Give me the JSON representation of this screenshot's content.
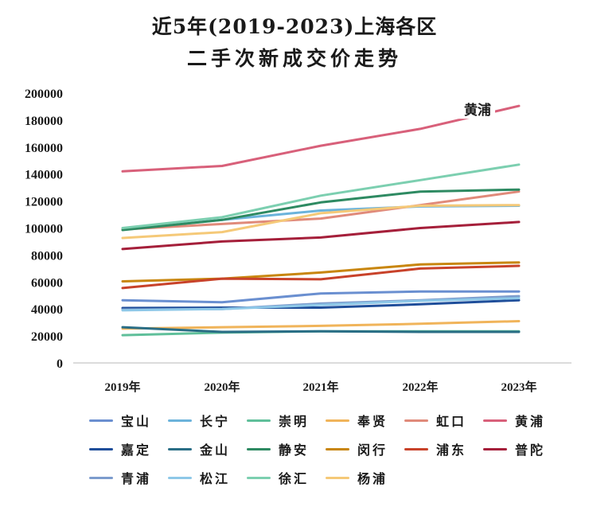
{
  "chart_data": {
    "type": "line",
    "title": "近5年(2019-2023)上海各区",
    "subtitle": "二手次新成交价走势",
    "xlabel": "",
    "ylabel": "",
    "categories": [
      "2019年",
      "2020年",
      "2021年",
      "2022年",
      "2023年"
    ],
    "ylim": [
      0,
      200000
    ],
    "yticks": [
      0,
      20000,
      40000,
      60000,
      80000,
      100000,
      120000,
      140000,
      160000,
      180000,
      200000
    ],
    "grid": false,
    "legend_position": "bottom",
    "annotations": [
      {
        "text": "黄浦",
        "series": "黄浦",
        "near": "2023年"
      }
    ],
    "series": [
      {
        "name": "宝山",
        "color": "#6a8fd0",
        "values": [
          46500,
          45000,
          51500,
          53000,
          53000
        ]
      },
      {
        "name": "长宁",
        "color": "#6bb3db",
        "values": [
          99000,
          106000,
          113000,
          116000,
          116500
        ]
      },
      {
        "name": "崇明",
        "color": "#5fbf9a",
        "values": [
          20600,
          22500,
          23500,
          23500,
          23500
        ]
      },
      {
        "name": "奉贤",
        "color": "#f0b45a",
        "values": [
          25400,
          26500,
          27500,
          29000,
          31000
        ]
      },
      {
        "name": "虹口",
        "color": "#e08a7a",
        "values": [
          99000,
          103000,
          107000,
          117000,
          127000
        ]
      },
      {
        "name": "黄浦",
        "color": "#d8607a",
        "values": [
          142000,
          146000,
          161000,
          173500,
          190500
        ]
      },
      {
        "name": "嘉定",
        "color": "#1f4e9a",
        "values": [
          40700,
          41000,
          41000,
          43500,
          46500
        ]
      },
      {
        "name": "金山",
        "color": "#2a6e86",
        "values": [
          26500,
          23000,
          23500,
          23000,
          23000
        ]
      },
      {
        "name": "静安",
        "color": "#2e8a62",
        "values": [
          98500,
          106000,
          119000,
          127000,
          128500
        ]
      },
      {
        "name": "闵行",
        "color": "#c8860e",
        "values": [
          60500,
          62500,
          67000,
          73000,
          74500
        ]
      },
      {
        "name": "浦东",
        "color": "#c8422a",
        "values": [
          55500,
          62500,
          62000,
          70000,
          72000
        ]
      },
      {
        "name": "普陀",
        "color": "#a51f3a",
        "values": [
          84400,
          90000,
          93000,
          100000,
          104500
        ]
      },
      {
        "name": "青浦",
        "color": "#7c9ccd",
        "values": [
          39500,
          40000,
          44000,
          46500,
          49500
        ]
      },
      {
        "name": "松江",
        "color": "#8ec8e8",
        "values": [
          39000,
          40000,
          43000,
          46000,
          48000
        ]
      },
      {
        "name": "徐汇",
        "color": "#7ccfb0",
        "values": [
          100000,
          108000,
          124000,
          135500,
          147000
        ]
      },
      {
        "name": "杨浦",
        "color": "#f5c978",
        "values": [
          92600,
          97000,
          111000,
          116500,
          117000
        ]
      }
    ]
  }
}
